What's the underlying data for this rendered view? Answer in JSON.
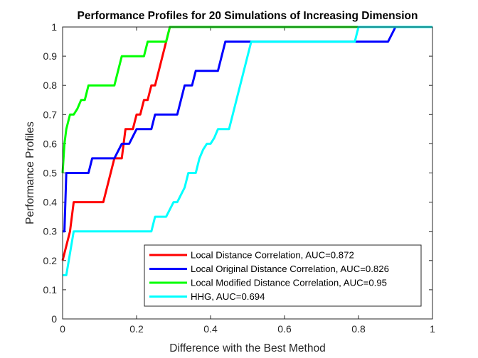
{
  "chart_data": {
    "type": "line",
    "title": "Performance Profiles for 20 Simulations of Increasing Dimension",
    "xlabel": "Difference with the Best Method",
    "ylabel": "Performance Profiles",
    "xlim": [
      0,
      1
    ],
    "ylim": [
      0,
      1
    ],
    "xticks": [
      "0",
      "0.2",
      "0.4",
      "0.6",
      "0.8",
      "1"
    ],
    "yticks": [
      "0",
      "0.1",
      "0.2",
      "0.3",
      "0.4",
      "0.5",
      "0.6",
      "0.7",
      "0.8",
      "0.9",
      "1"
    ],
    "grid": false,
    "legend_position": "bottom-right",
    "series": [
      {
        "name": "Local Distance Correlation, AUC=0.872",
        "color": "#ff0000",
        "x": [
          0,
          0.01,
          0.02,
          0.03,
          0.11,
          0.14,
          0.16,
          0.17,
          0.19,
          0.2,
          0.21,
          0.22,
          0.23,
          0.24,
          0.25,
          0.26,
          0.27,
          0.28,
          0.29,
          0.3,
          1.0
        ],
        "y": [
          0.2,
          0.25,
          0.3,
          0.4,
          0.4,
          0.55,
          0.55,
          0.65,
          0.65,
          0.7,
          0.7,
          0.75,
          0.75,
          0.8,
          0.8,
          0.85,
          0.9,
          0.95,
          1.0,
          1.0,
          1.0
        ]
      },
      {
        "name": "Local Original Distance Correlation, AUC=0.826",
        "color": "#0000ff",
        "x": [
          0,
          0.005,
          0.01,
          0.07,
          0.08,
          0.14,
          0.16,
          0.18,
          0.2,
          0.24,
          0.25,
          0.31,
          0.33,
          0.35,
          0.36,
          0.42,
          0.44,
          0.51,
          0.53,
          0.8,
          0.88,
          0.9,
          1.0
        ],
        "y": [
          0.3,
          0.3,
          0.5,
          0.5,
          0.55,
          0.55,
          0.6,
          0.6,
          0.65,
          0.65,
          0.7,
          0.7,
          0.8,
          0.8,
          0.85,
          0.85,
          0.95,
          0.95,
          0.95,
          0.95,
          0.95,
          1.0,
          1.0
        ]
      },
      {
        "name": "Local Modified Distance Correlation, AUC=0.95",
        "color": "#00ff00",
        "x": [
          0,
          0.005,
          0.01,
          0.02,
          0.03,
          0.04,
          0.05,
          0.06,
          0.07,
          0.14,
          0.16,
          0.22,
          0.23,
          0.28,
          0.29,
          1.0
        ],
        "y": [
          0.5,
          0.6,
          0.65,
          0.7,
          0.7,
          0.72,
          0.75,
          0.75,
          0.8,
          0.8,
          0.9,
          0.9,
          0.95,
          0.95,
          1.0,
          1.0
        ]
      },
      {
        "name": "HHG, AUC=0.694",
        "color": "#00ffff",
        "x": [
          0,
          0.01,
          0.03,
          0.24,
          0.25,
          0.28,
          0.3,
          0.31,
          0.33,
          0.34,
          0.36,
          0.37,
          0.38,
          0.39,
          0.4,
          0.41,
          0.42,
          0.45,
          0.46,
          0.48,
          0.5,
          0.51,
          0.53,
          0.79,
          0.8,
          1.0
        ],
        "y": [
          0.15,
          0.15,
          0.3,
          0.3,
          0.35,
          0.35,
          0.4,
          0.4,
          0.45,
          0.5,
          0.5,
          0.55,
          0.58,
          0.6,
          0.6,
          0.62,
          0.65,
          0.65,
          0.7,
          0.8,
          0.9,
          0.95,
          0.95,
          0.95,
          1.0,
          1.0
        ]
      }
    ]
  }
}
